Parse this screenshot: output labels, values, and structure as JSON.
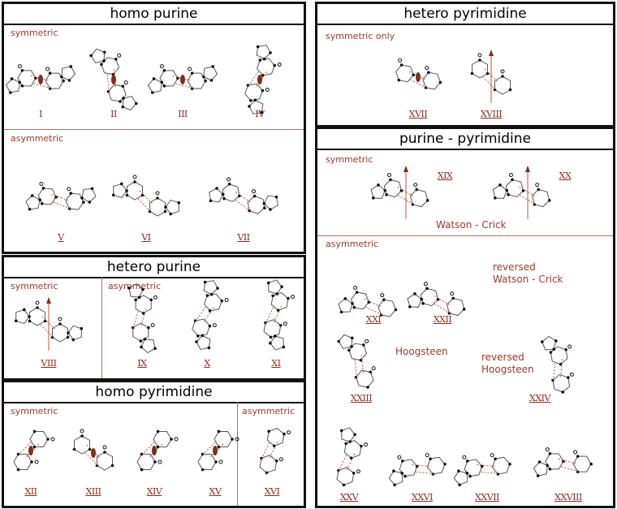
{
  "panels": {
    "homo_purine": {
      "title": "homo purine",
      "sub1": "symmetric",
      "sub2": "asymmetric"
    },
    "hetero_purine": {
      "title": "hetero purine",
      "sub1": "symmetric",
      "sub2": "asymmetric"
    },
    "homo_pyrimidine": {
      "title": "homo pyrimidine",
      "sub1": "symmetric",
      "sub2": "asymmetric"
    },
    "hetero_pyrimidine": {
      "title": "hetero pyrimidine",
      "sub1": "symmetric only"
    },
    "purine_pyrimidine": {
      "title": "purine - pyrimidine",
      "sub1": "symmetric",
      "sub2": "asymmetric"
    }
  },
  "annotations": {
    "watson_crick": "Watson - Crick",
    "reversed_wc_1": "reversed",
    "reversed_wc_2": "Watson - Crick",
    "hoogsteen": "Hoogsteen",
    "reversed_h_1": "reversed",
    "reversed_h_2": "Hoogsteen"
  },
  "structures": [
    {
      "numeral": "I",
      "pair": "purine-purine"
    },
    {
      "numeral": "II",
      "pair": "purine-purine"
    },
    {
      "numeral": "III",
      "pair": "purine-purine"
    },
    {
      "numeral": "IV",
      "pair": "purine-purine"
    },
    {
      "numeral": "V",
      "pair": "purine-purine"
    },
    {
      "numeral": "VI",
      "pair": "purine-purine"
    },
    {
      "numeral": "VII",
      "pair": "purine-purine"
    },
    {
      "numeral": "VIII",
      "pair": "purine-purine"
    },
    {
      "numeral": "IX",
      "pair": "purine-purine"
    },
    {
      "numeral": "X",
      "pair": "purine-purine"
    },
    {
      "numeral": "XI",
      "pair": "purine-purine"
    },
    {
      "numeral": "XII",
      "pair": "pyrimidine-pyrimidine"
    },
    {
      "numeral": "XIII",
      "pair": "pyrimidine-pyrimidine"
    },
    {
      "numeral": "XIV",
      "pair": "pyrimidine-pyrimidine"
    },
    {
      "numeral": "XV",
      "pair": "pyrimidine-pyrimidine"
    },
    {
      "numeral": "XVI",
      "pair": "pyrimidine-pyrimidine"
    },
    {
      "numeral": "XVII",
      "pair": "pyrimidine-pyrimidine"
    },
    {
      "numeral": "XVIII",
      "pair": "pyrimidine-pyrimidine"
    },
    {
      "numeral": "XIX",
      "pair": "purine-pyrimidine"
    },
    {
      "numeral": "XX",
      "pair": "purine-pyrimidine"
    },
    {
      "numeral": "XXI",
      "pair": "purine-pyrimidine"
    },
    {
      "numeral": "XXII",
      "pair": "purine-pyrimidine"
    },
    {
      "numeral": "XXIII",
      "pair": "purine-pyrimidine"
    },
    {
      "numeral": "XXIV",
      "pair": "purine-pyrimidine"
    },
    {
      "numeral": "XXV",
      "pair": "purine-pyrimidine"
    },
    {
      "numeral": "XXVI",
      "pair": "purine-pyrimidine"
    },
    {
      "numeral": "XXVII",
      "pair": "purine-pyrimidine"
    },
    {
      "numeral": "XXVIII",
      "pair": "purine-pyrimidine"
    }
  ],
  "colors": {
    "label": "#9a3a2a",
    "hbond": "#c0503a",
    "border": "#111111",
    "bond": "#555555"
  }
}
